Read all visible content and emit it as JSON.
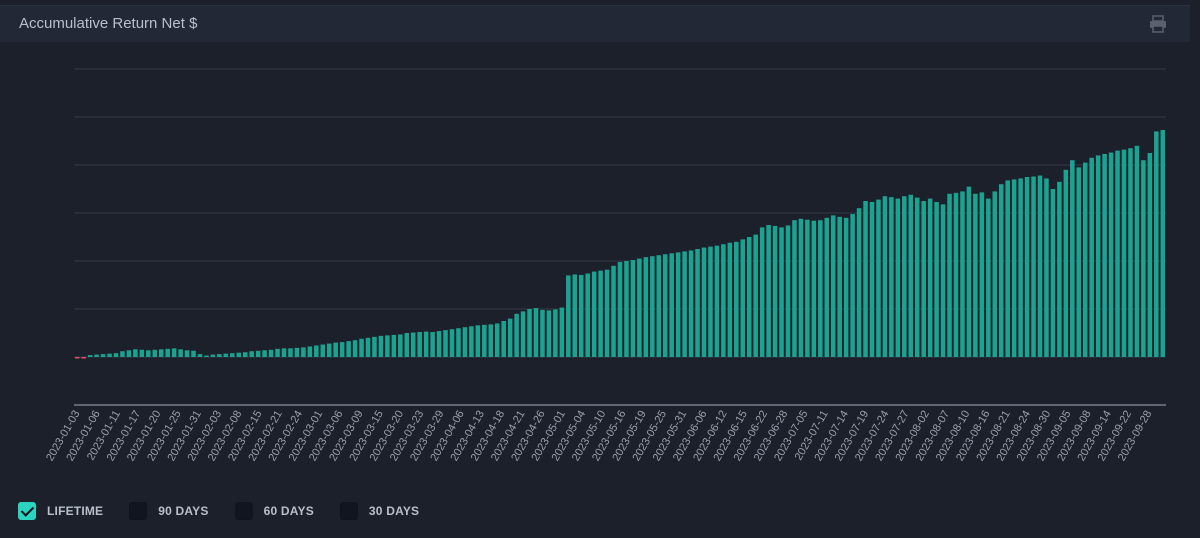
{
  "header": {
    "title": "Accumulative Return Net $",
    "print_icon": "printer-icon"
  },
  "colors": {
    "bar": "#1aa391",
    "negative": "#e0506e",
    "grid": "#343a48",
    "axis": "#5f6573",
    "tick": "#9aa0ad",
    "accent": "#2ad4bf"
  },
  "legend": [
    {
      "label": "LIFETIME",
      "checked": true
    },
    {
      "label": "90 DAYS",
      "checked": false
    },
    {
      "label": "60 DAYS",
      "checked": false
    },
    {
      "label": "30 DAYS",
      "checked": false
    }
  ],
  "chart_data": {
    "type": "bar",
    "title": "Accumulative Return Net $",
    "xlabel": "",
    "ylabel": "",
    "ylim": [
      -10,
      60
    ],
    "grid": true,
    "y_tick_labels_visible": false,
    "x_tick_labels": [
      "2023-01-03",
      "2023-01-06",
      "2023-01-11",
      "2023-01-17",
      "2023-01-20",
      "2023-01-25",
      "2023-01-31",
      "2023-02-03",
      "2023-02-08",
      "2023-02-15",
      "2023-02-21",
      "2023-02-24",
      "2023-03-01",
      "2023-03-06",
      "2023-03-09",
      "2023-03-15",
      "2023-03-20",
      "2023-03-23",
      "2023-03-29",
      "2023-04-06",
      "2023-04-13",
      "2023-04-18",
      "2023-04-21",
      "2023-04-26",
      "2023-05-01",
      "2023-05-04",
      "2023-05-10",
      "2023-05-16",
      "2023-05-19",
      "2023-05-25",
      "2023-05-31",
      "2023-06-06",
      "2023-06-12",
      "2023-06-15",
      "2023-06-22",
      "2023-06-28",
      "2023-07-05",
      "2023-07-11",
      "2023-07-14",
      "2023-07-19",
      "2023-07-24",
      "2023-07-27",
      "2023-08-02",
      "2023-08-07",
      "2023-08-10",
      "2023-08-16",
      "2023-08-21",
      "2023-08-24",
      "2023-08-30",
      "2023-09-05",
      "2023-09-08",
      "2023-09-14",
      "2023-09-22",
      "2023-09-28"
    ],
    "values": [
      -0.15,
      -0.1,
      0.4,
      0.5,
      0.6,
      0.7,
      0.8,
      1.2,
      1.4,
      1.6,
      1.5,
      1.4,
      1.5,
      1.6,
      1.7,
      1.8,
      1.6,
      1.4,
      1.3,
      0.6,
      0.1,
      0.5,
      0.6,
      0.7,
      0.8,
      0.9,
      1.0,
      1.2,
      1.3,
      1.4,
      1.5,
      1.7,
      1.8,
      1.8,
      1.9,
      2.0,
      2.2,
      2.4,
      2.6,
      2.8,
      3.0,
      3.1,
      3.3,
      3.5,
      3.8,
      4.0,
      4.2,
      4.4,
      4.5,
      4.6,
      4.7,
      5.0,
      5.1,
      5.2,
      5.3,
      5.2,
      5.4,
      5.6,
      5.8,
      6.0,
      6.2,
      6.4,
      6.6,
      6.7,
      6.8,
      7.0,
      7.5,
      8.0,
      9.0,
      9.5,
      10.0,
      10.2,
      9.8,
      9.7,
      9.9,
      10.3,
      17.0,
      17.2,
      17.1,
      17.4,
      17.8,
      18.0,
      18.2,
      19.0,
      19.8,
      20.0,
      20.2,
      20.5,
      20.8,
      21.0,
      21.2,
      21.4,
      21.6,
      21.8,
      22.0,
      22.2,
      22.5,
      22.8,
      23.0,
      23.2,
      23.5,
      23.8,
      24.0,
      24.5,
      25.0,
      25.5,
      27.0,
      27.5,
      27.3,
      27.0,
      27.4,
      28.5,
      28.8,
      28.6,
      28.4,
      28.5,
      29.0,
      29.5,
      29.2,
      29.0,
      29.8,
      31.0,
      32.5,
      32.3,
      32.8,
      33.5,
      33.3,
      33.0,
      33.5,
      33.8,
      33.2,
      32.5,
      33.0,
      32.3,
      31.8,
      34.0,
      34.2,
      34.5,
      35.5,
      34.0,
      34.3,
      33.0,
      34.5,
      36.0,
      36.8,
      37.0,
      37.2,
      37.5,
      37.6,
      37.8,
      37.2,
      35.0,
      36.5,
      39.0,
      41.0,
      39.5,
      40.5,
      41.5,
      42.0,
      42.3,
      42.6,
      43.0,
      43.2,
      43.5,
      44.0,
      41.0,
      42.5,
      47.0,
      47.3
    ]
  }
}
